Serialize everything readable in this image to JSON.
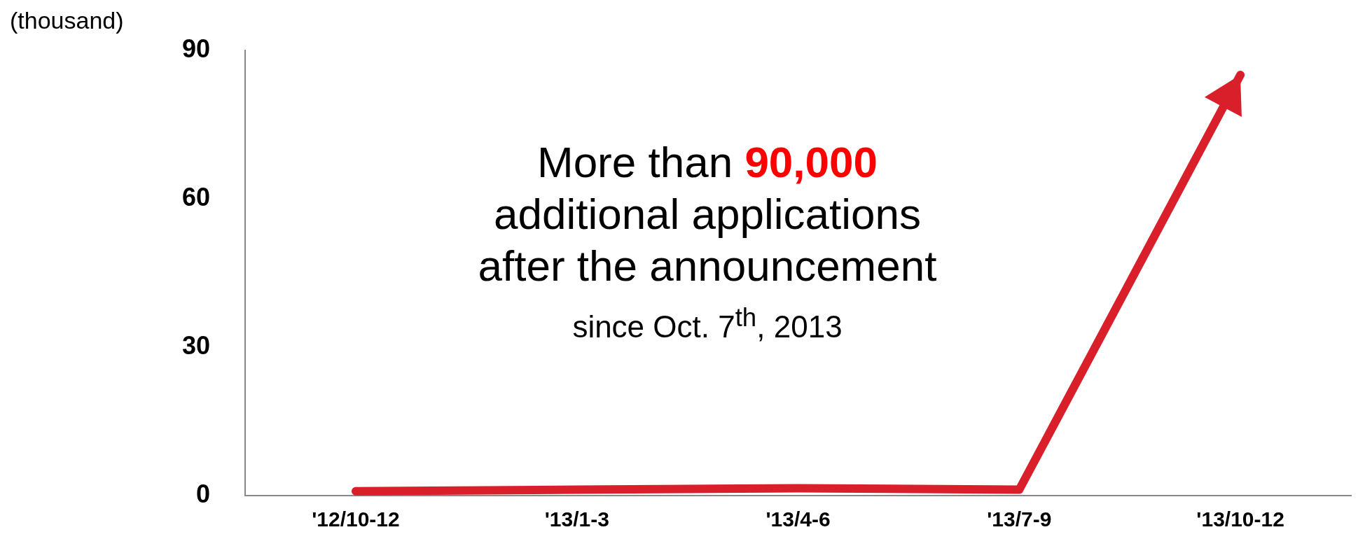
{
  "chart_data": {
    "type": "line",
    "ylabel": "(thousand)",
    "categories": [
      "'12/10-12",
      "'13/1-3",
      "'13/4-6",
      "'13/7-9",
      "'13/10-12"
    ],
    "series": [
      {
        "color": "#d9202a",
        "values": [
          0.9,
          1.2,
          1.5,
          1.2,
          85
        ]
      }
    ],
    "ylim": [
      0,
      90
    ],
    "yticks": [
      0,
      30,
      60,
      90
    ],
    "grid": false,
    "legend": false,
    "marker": "none",
    "line_style": "solid",
    "annotations": [
      "More than 90,000",
      "additional applications",
      "after the announcement",
      "since Oct. 7$^{th}$, 2013"
    ]
  }
}
